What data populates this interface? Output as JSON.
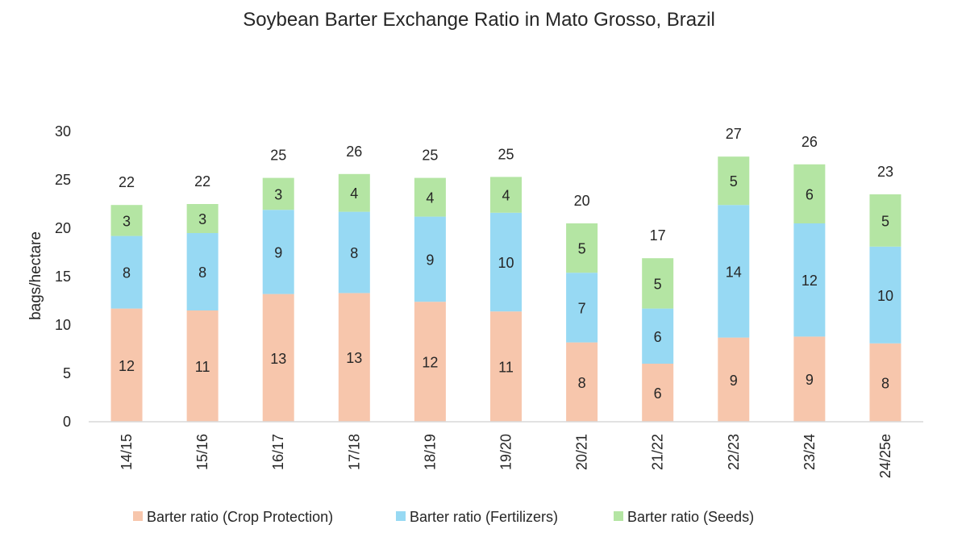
{
  "chart_data": {
    "type": "bar",
    "stacked": true,
    "title": "Soybean Barter Exchange Ratio in Mato Grosso, Brazil",
    "xlabel": "",
    "ylabel": "bags/hectare",
    "ylim": [
      0,
      30
    ],
    "yticks": [
      0,
      5,
      10,
      15,
      20,
      25,
      30
    ],
    "grid": false,
    "legend_position": "bottom",
    "categories": [
      "14/15",
      "15/16",
      "16/17",
      "17/18",
      "18/19",
      "19/20",
      "20/21",
      "21/22",
      "22/23",
      "23/24",
      "24/25e"
    ],
    "series": [
      {
        "name": "Barter ratio (Crop Protection)",
        "color": "#F7C6AC",
        "values": [
          11.7,
          11.5,
          13.2,
          13.3,
          12.4,
          11.4,
          8.2,
          6.0,
          8.7,
          8.8,
          8.1
        ],
        "labels": [
          "12",
          "11",
          "13",
          "13",
          "12",
          "11",
          "8",
          "6",
          "9",
          "9",
          "8"
        ]
      },
      {
        "name": "Barter ratio (Fertilizers)",
        "color": "#97D9F3",
        "values": [
          7.5,
          8.0,
          8.7,
          8.4,
          8.8,
          10.2,
          7.2,
          5.7,
          13.7,
          11.7,
          10.0
        ],
        "labels": [
          "8",
          "8",
          "9",
          "8",
          "9",
          "10",
          "7",
          "6",
          "14",
          "12",
          "10"
        ]
      },
      {
        "name": "Barter ratio (Seeds)",
        "color": "#B4E5A3",
        "values": [
          3.2,
          3.0,
          3.3,
          3.9,
          4.0,
          3.7,
          5.1,
          5.2,
          5.0,
          6.1,
          5.4
        ],
        "labels": [
          "3",
          "3",
          "3",
          "4",
          "4",
          "4",
          "5",
          "5",
          "5",
          "6",
          "5"
        ]
      }
    ],
    "totals": [
      "22",
      "22",
      "25",
      "26",
      "25",
      "25",
      "20",
      "17",
      "27",
      "26",
      "23"
    ]
  }
}
